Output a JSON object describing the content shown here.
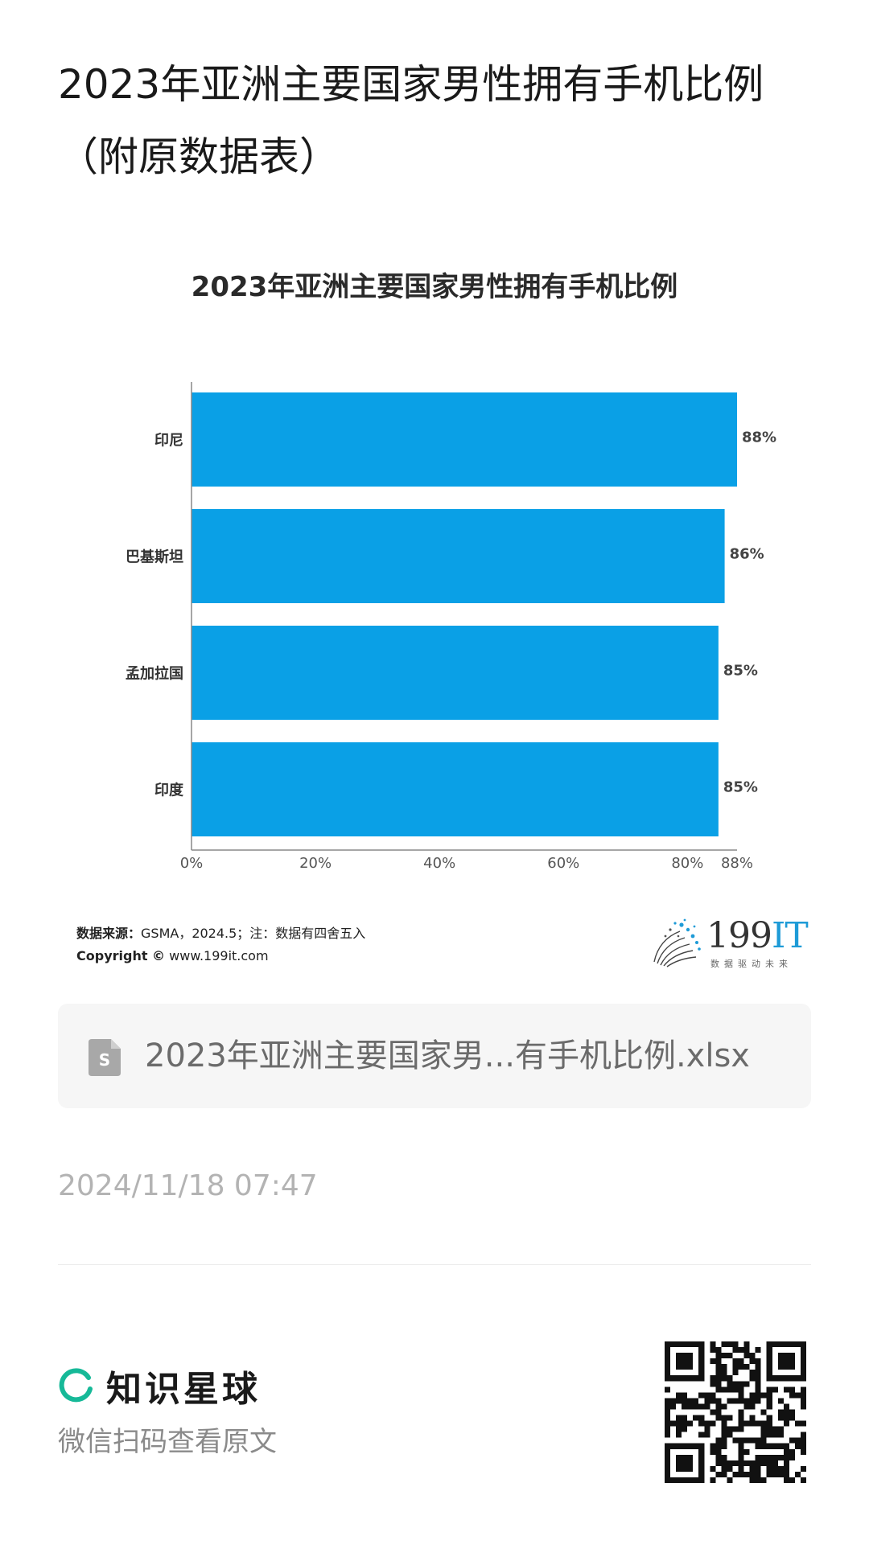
{
  "page": {
    "title": "2023年亚洲主要国家男性拥有手机比例（附原数据表）"
  },
  "chart_data": {
    "type": "bar",
    "orientation": "horizontal",
    "title": "2023年亚洲主要国家男性拥有手机比例",
    "categories": [
      "印尼",
      "巴基斯坦",
      "孟加拉国",
      "印度"
    ],
    "values": [
      88,
      86,
      85,
      85
    ],
    "value_labels": [
      "88%",
      "86%",
      "85%",
      "85%"
    ],
    "x_ticks": [
      "0%",
      "20%",
      "40%",
      "60%",
      "80%",
      "88%"
    ],
    "x_tick_values": [
      0,
      20,
      40,
      60,
      80,
      88
    ],
    "xlim": [
      0,
      88
    ],
    "grid": false,
    "bar_color": "#0aa0e6"
  },
  "source": {
    "label": "数据来源：",
    "text": "GSMA，2024.5；注：数据有四舍五入",
    "copyright_label": "Copyright ©",
    "copyright_site": "www.199it.com"
  },
  "brand": {
    "logo_main": "199",
    "logo_it": "IT",
    "tagline": "数据驱动未来",
    "accent_color": "#1e9bd7"
  },
  "file": {
    "name": "2023年亚洲主要国家男...有手机比例.xlsx",
    "icon": "spreadsheet-file-icon"
  },
  "post": {
    "timestamp": "2024/11/18 07:47"
  },
  "footer": {
    "app_name": "知识星球",
    "scan_hint": "微信扫码查看原文",
    "accent_color": "#16b998"
  }
}
